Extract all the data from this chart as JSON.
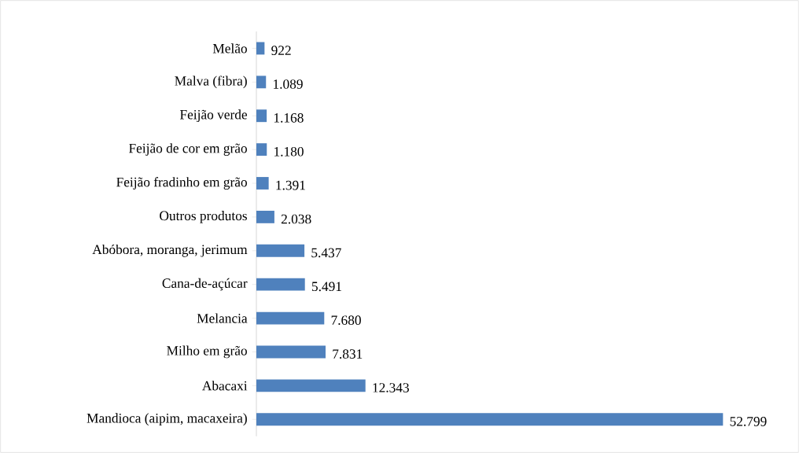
{
  "chart_data": {
    "type": "bar",
    "orientation": "horizontal",
    "categories": [
      "Melão",
      "Malva (fibra)",
      "Feijão verde",
      "Feijão de cor em grão",
      "Feijão fradinho em grão",
      "Outros produtos",
      "Abóbora, moranga, jerimum",
      "Cana-de-açúcar",
      "Melancia",
      "Milho em grão",
      "Abacaxi",
      "Mandioca (aipim, macaxeira)"
    ],
    "values": [
      922,
      1089,
      1168,
      1180,
      1391,
      2038,
      5437,
      5491,
      7680,
      7831,
      12343,
      52799
    ],
    "value_labels": [
      "922",
      "1.089",
      "1.168",
      "1.180",
      "1.391",
      "2.038",
      "5.437",
      "5.491",
      "7.680",
      "7.831",
      "12.343",
      "52.799"
    ],
    "color": "#4f81bd"
  }
}
